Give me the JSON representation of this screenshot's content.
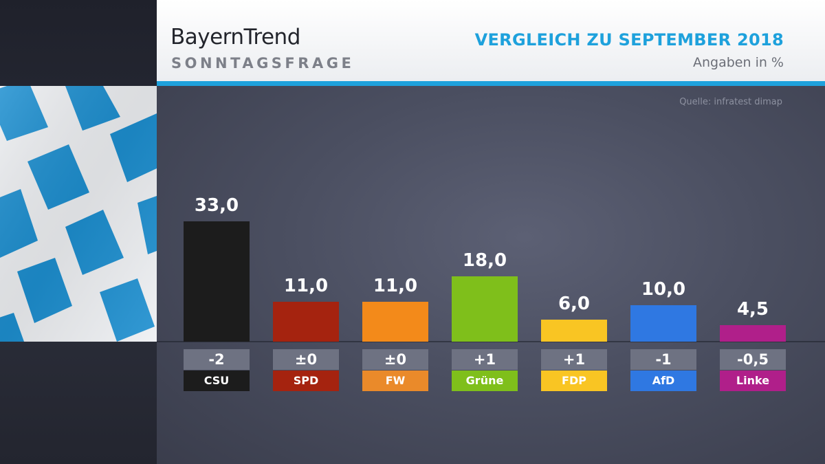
{
  "header": {
    "title": "BayernTrend",
    "subtitle": "SONNTAGSFRAGE",
    "comparison": "VERGLEICH ZU SEPTEMBER 2018",
    "unit": "Angaben in %"
  },
  "source": "Quelle: infratest dimap",
  "colors": {
    "accent": "#1ea1dc",
    "CSU": "#1c1c1c",
    "SPD": "#a5230f",
    "FW": "#f38a1a",
    "Grüne": "#7fbf1b",
    "FDP": "#f9c523",
    "AfD": "#2f78e2",
    "Linke": "#b01f8a"
  },
  "chart_data": {
    "type": "bar",
    "title": "SONNTAGSFRAGE",
    "subtitle": "VERGLEICH ZU SEPTEMBER 2018",
    "ylabel": "Angaben in %",
    "categories": [
      "CSU",
      "SPD",
      "FW",
      "Grüne",
      "FDP",
      "AfD",
      "Linke"
    ],
    "values": [
      33.0,
      11.0,
      11.0,
      18.0,
      6.0,
      10.0,
      4.5
    ],
    "value_labels": [
      "33,0",
      "11,0",
      "11,0",
      "18,0",
      "6,0",
      "10,0",
      "4,5"
    ],
    "changes": [
      "-2",
      "±0",
      "±0",
      "+1",
      "+1",
      "-1",
      "-0,5"
    ],
    "ylim": [
      0,
      33
    ],
    "grid": false,
    "legend": "none"
  }
}
